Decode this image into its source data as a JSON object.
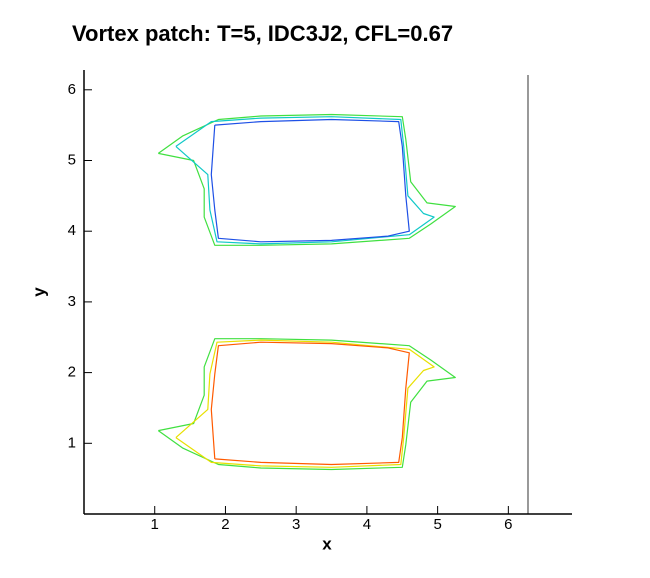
{
  "chart_data": {
    "type": "contour",
    "title": "Vortex patch: T=5, IDC3J2, CFL=0.67",
    "x_label": "x",
    "y_label": "y",
    "xlim": [
      0,
      6.9
    ],
    "ylim": [
      0,
      6.28
    ],
    "xticks": [
      1,
      2,
      3,
      4,
      5,
      6
    ],
    "yticks": [
      1,
      2,
      3,
      4,
      5,
      6
    ],
    "series": [
      {
        "color": "#40e040",
        "x": [
          1.05,
          1.4,
          1.9,
          2.5,
          3.5,
          4.5,
          4.55,
          4.62,
          4.85,
          5.25,
          4.9,
          4.6,
          3.5,
          2.5,
          1.85,
          1.7,
          1.7,
          1.55,
          1.05
        ],
        "y": [
          5.1,
          5.35,
          5.58,
          5.63,
          5.65,
          5.62,
          5.3,
          4.7,
          4.4,
          4.35,
          4.1,
          3.9,
          3.82,
          3.8,
          3.8,
          4.2,
          4.6,
          5.0,
          5.1
        ]
      },
      {
        "color": "#10c8c8",
        "x": [
          1.3,
          1.8,
          2.5,
          3.5,
          4.48,
          4.52,
          4.58,
          4.8,
          4.95,
          4.6,
          3.5,
          2.5,
          1.88,
          1.78,
          1.75,
          1.3
        ],
        "y": [
          5.2,
          5.55,
          5.6,
          5.62,
          5.58,
          5.2,
          4.5,
          4.25,
          4.2,
          3.95,
          3.85,
          3.82,
          3.85,
          4.3,
          4.8,
          5.2
        ]
      },
      {
        "color": "#1e50e6",
        "x": [
          1.85,
          2.5,
          3.5,
          4.45,
          4.5,
          4.55,
          4.6,
          4.3,
          3.5,
          2.5,
          1.9,
          1.85,
          1.8,
          1.85
        ],
        "y": [
          5.5,
          5.55,
          5.58,
          5.55,
          5.2,
          4.5,
          4.0,
          3.93,
          3.87,
          3.85,
          3.9,
          4.3,
          4.8,
          5.5
        ]
      },
      {
        "color": "#40e040",
        "x": [
          1.05,
          1.4,
          1.9,
          2.5,
          3.5,
          4.5,
          4.55,
          4.62,
          4.85,
          5.25,
          4.9,
          4.6,
          3.5,
          2.5,
          1.85,
          1.7,
          1.7,
          1.55,
          1.05
        ],
        "y": [
          1.18,
          0.93,
          0.7,
          0.65,
          0.63,
          0.66,
          0.98,
          1.58,
          1.88,
          1.93,
          2.18,
          2.38,
          2.46,
          2.48,
          2.48,
          2.08,
          1.68,
          1.28,
          1.18
        ]
      },
      {
        "color": "#e8e000",
        "x": [
          1.3,
          1.8,
          2.5,
          3.5,
          4.48,
          4.52,
          4.58,
          4.8,
          4.95,
          4.6,
          3.5,
          2.5,
          1.88,
          1.78,
          1.75,
          1.3
        ],
        "y": [
          1.08,
          0.73,
          0.68,
          0.66,
          0.7,
          1.08,
          1.78,
          2.03,
          2.08,
          2.33,
          2.43,
          2.46,
          2.43,
          1.98,
          1.48,
          1.08
        ]
      },
      {
        "color": "#ff5a00",
        "x": [
          1.85,
          2.5,
          3.5,
          4.45,
          4.5,
          4.55,
          4.6,
          4.3,
          3.5,
          2.5,
          1.9,
          1.85,
          1.8,
          1.85
        ],
        "y": [
          0.78,
          0.73,
          0.7,
          0.73,
          1.08,
          1.78,
          2.28,
          2.35,
          2.41,
          2.43,
          2.38,
          1.98,
          1.48,
          0.78
        ]
      }
    ]
  }
}
